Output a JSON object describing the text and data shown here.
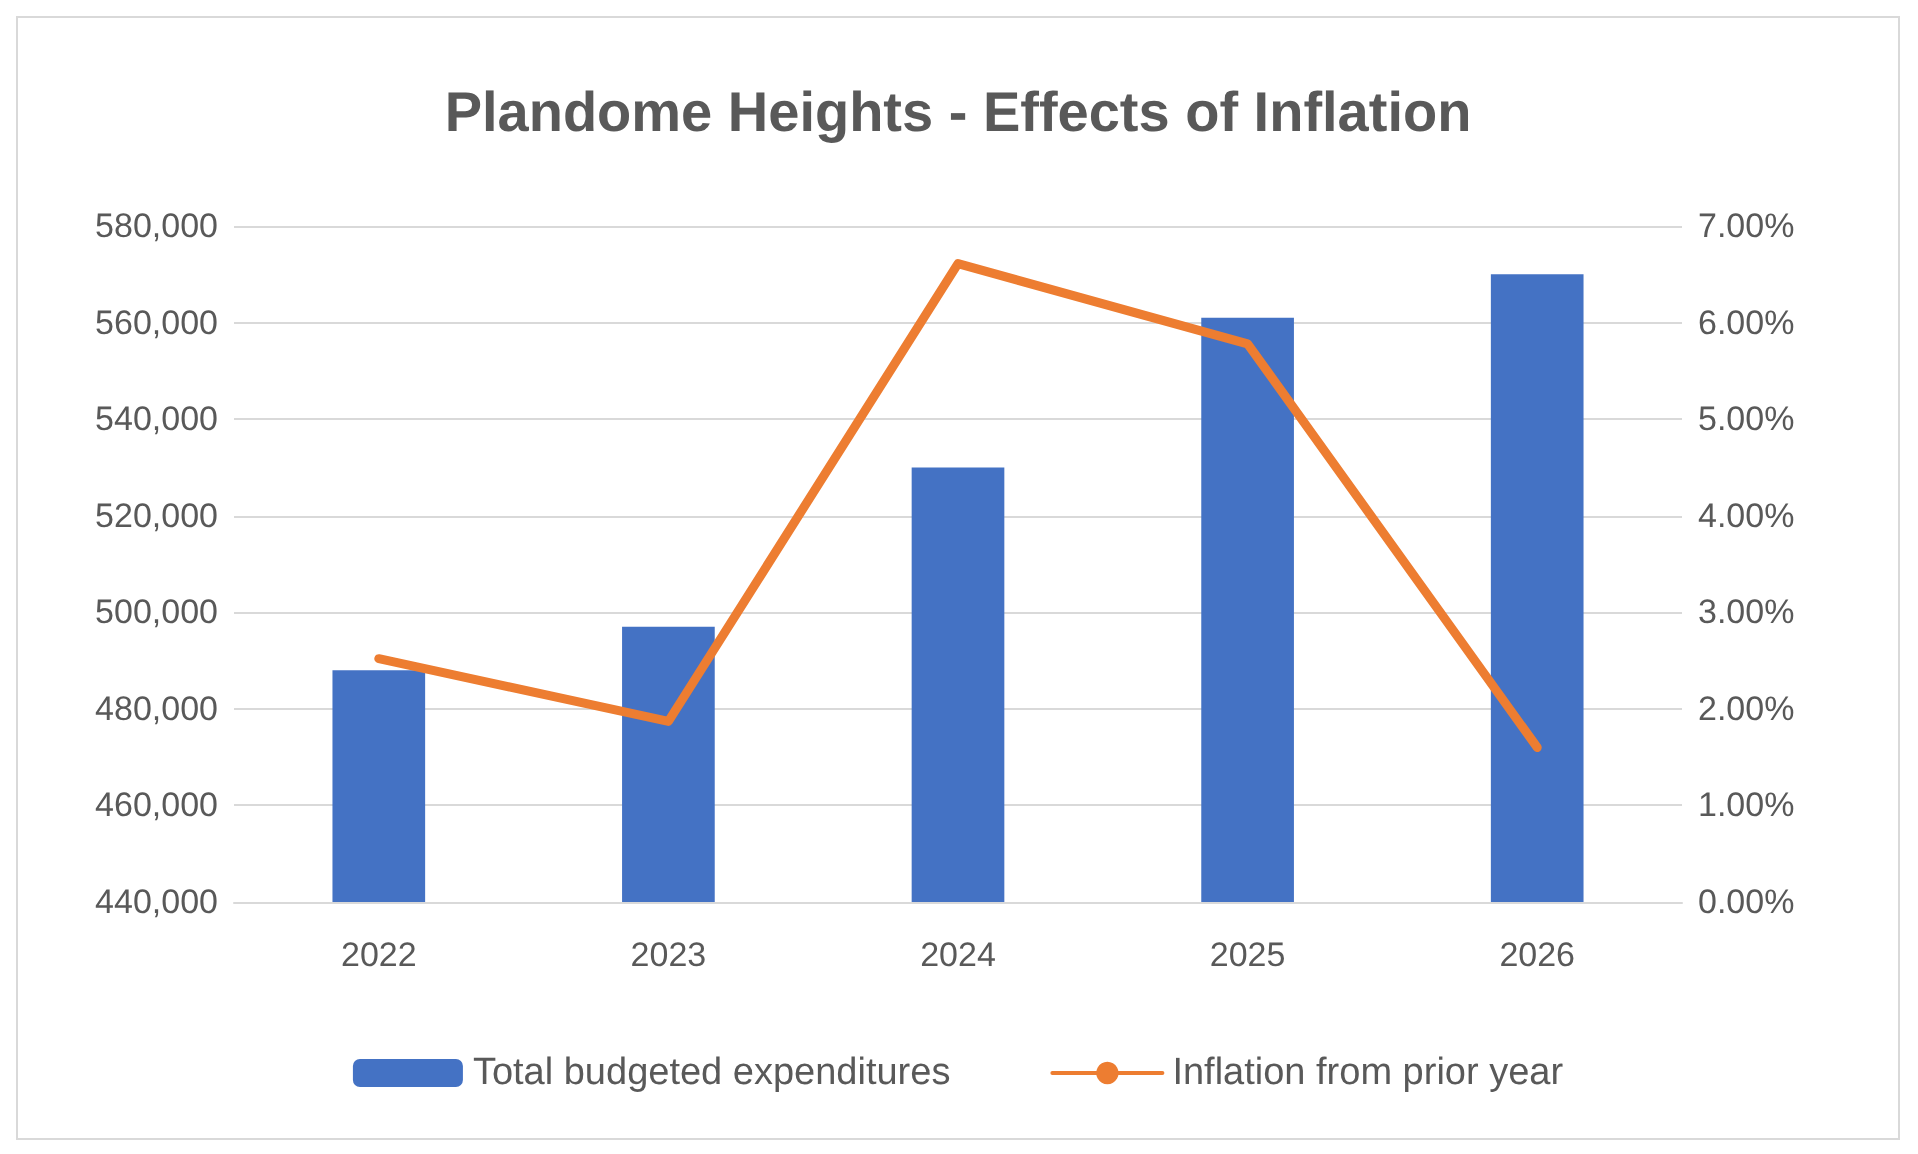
{
  "chart_data": {
    "type": "bar",
    "title": "Plandome Heights - Effects of Inflation",
    "categories": [
      "2022",
      "2023",
      "2024",
      "2025",
      "2026"
    ],
    "series": [
      {
        "name": "Total budgeted expenditures",
        "color": "#4472c4",
        "values": [
          488000,
          497000,
          530000,
          561000,
          570000
        ]
      },
      {
        "name": "Inflation from prior year",
        "type": "line",
        "axis": "y2",
        "color": "#ed7d31",
        "values": [
          2.52,
          1.87,
          6.61,
          5.78,
          1.6
        ]
      }
    ],
    "ylim": [
      440000,
      580000
    ],
    "yticks": [
      {
        "value": 440000,
        "label": "440,000"
      },
      {
        "value": 460000,
        "label": "460,000"
      },
      {
        "value": 480000,
        "label": "480,000"
      },
      {
        "value": 500000,
        "label": "500,000"
      },
      {
        "value": 520000,
        "label": "520,000"
      },
      {
        "value": 540000,
        "label": "540,000"
      },
      {
        "value": 560000,
        "label": "560,000"
      },
      {
        "value": 580000,
        "label": "580,000"
      }
    ],
    "y2lim": [
      0,
      7
    ],
    "y2ticks": [
      {
        "value": 0,
        "label": "0.00%"
      },
      {
        "value": 1,
        "label": "1.00%"
      },
      {
        "value": 2,
        "label": "2.00%"
      },
      {
        "value": 3,
        "label": "3.00%"
      },
      {
        "value": 4,
        "label": "4.00%"
      },
      {
        "value": 5,
        "label": "5.00%"
      },
      {
        "value": 6,
        "label": "6.00%"
      },
      {
        "value": 7,
        "label": "7.00%"
      }
    ],
    "grid": "y",
    "legend": "bottom",
    "marker": "none",
    "line_style": "solid"
  }
}
